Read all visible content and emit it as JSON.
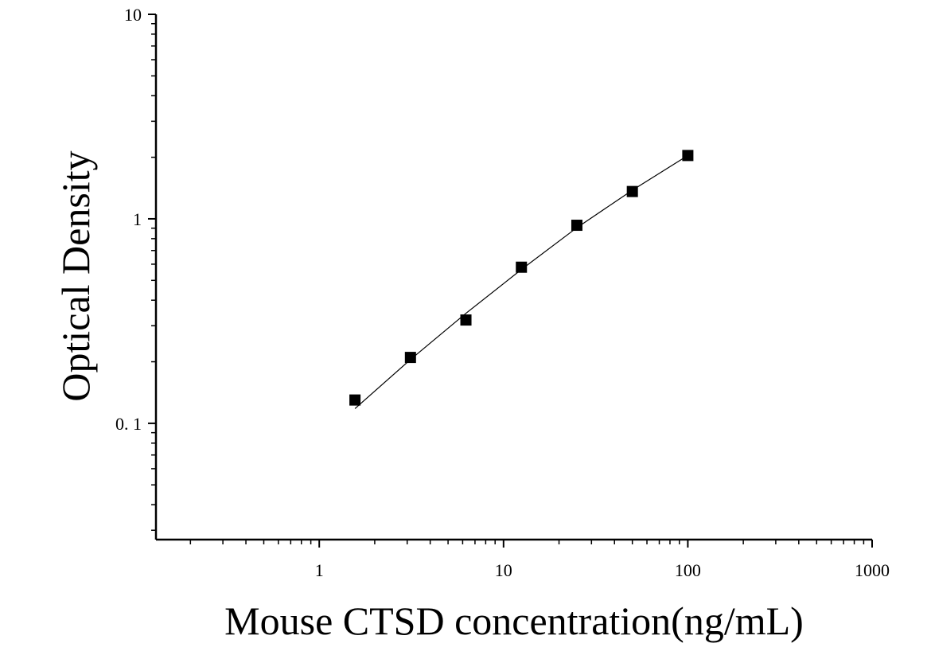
{
  "chart_data": {
    "type": "scatter",
    "title": "",
    "xlabel": "Mouse CTSD concentration(ng/mL)",
    "ylabel": "Optical Density",
    "xscale": "log",
    "yscale": "log",
    "xlim": [
      0.13,
      1000
    ],
    "ylim": [
      0.027,
      10
    ],
    "xticks": [
      {
        "value": 1,
        "label": "1"
      },
      {
        "value": 10,
        "label": "10"
      },
      {
        "value": 100,
        "label": "100"
      },
      {
        "value": 1000,
        "label": "1000"
      }
    ],
    "yticks": [
      {
        "value": 0.1,
        "label": "0. 1"
      },
      {
        "value": 1,
        "label": "1"
      },
      {
        "value": 10,
        "label": "10"
      }
    ],
    "grid": false,
    "legend": "none",
    "marker": "square",
    "color": "#000000",
    "series": [
      {
        "points": [
          {
            "x": 1.5625,
            "y": 0.13
          },
          {
            "x": 3.125,
            "y": 0.21
          },
          {
            "x": 6.25,
            "y": 0.32
          },
          {
            "x": 12.5,
            "y": 0.58
          },
          {
            "x": 25,
            "y": 0.93
          },
          {
            "x": 50,
            "y": 1.36
          },
          {
            "x": 100,
            "y": 2.04
          }
        ]
      }
    ],
    "fit_line": {
      "points": [
        {
          "x": 1.5625,
          "y": 0.118
        },
        {
          "x": 3.125,
          "y": 0.205
        },
        {
          "x": 6.25,
          "y": 0.345
        },
        {
          "x": 12.5,
          "y": 0.565
        },
        {
          "x": 25,
          "y": 0.905
        },
        {
          "x": 50,
          "y": 1.38
        },
        {
          "x": 100,
          "y": 2.04
        }
      ]
    }
  }
}
